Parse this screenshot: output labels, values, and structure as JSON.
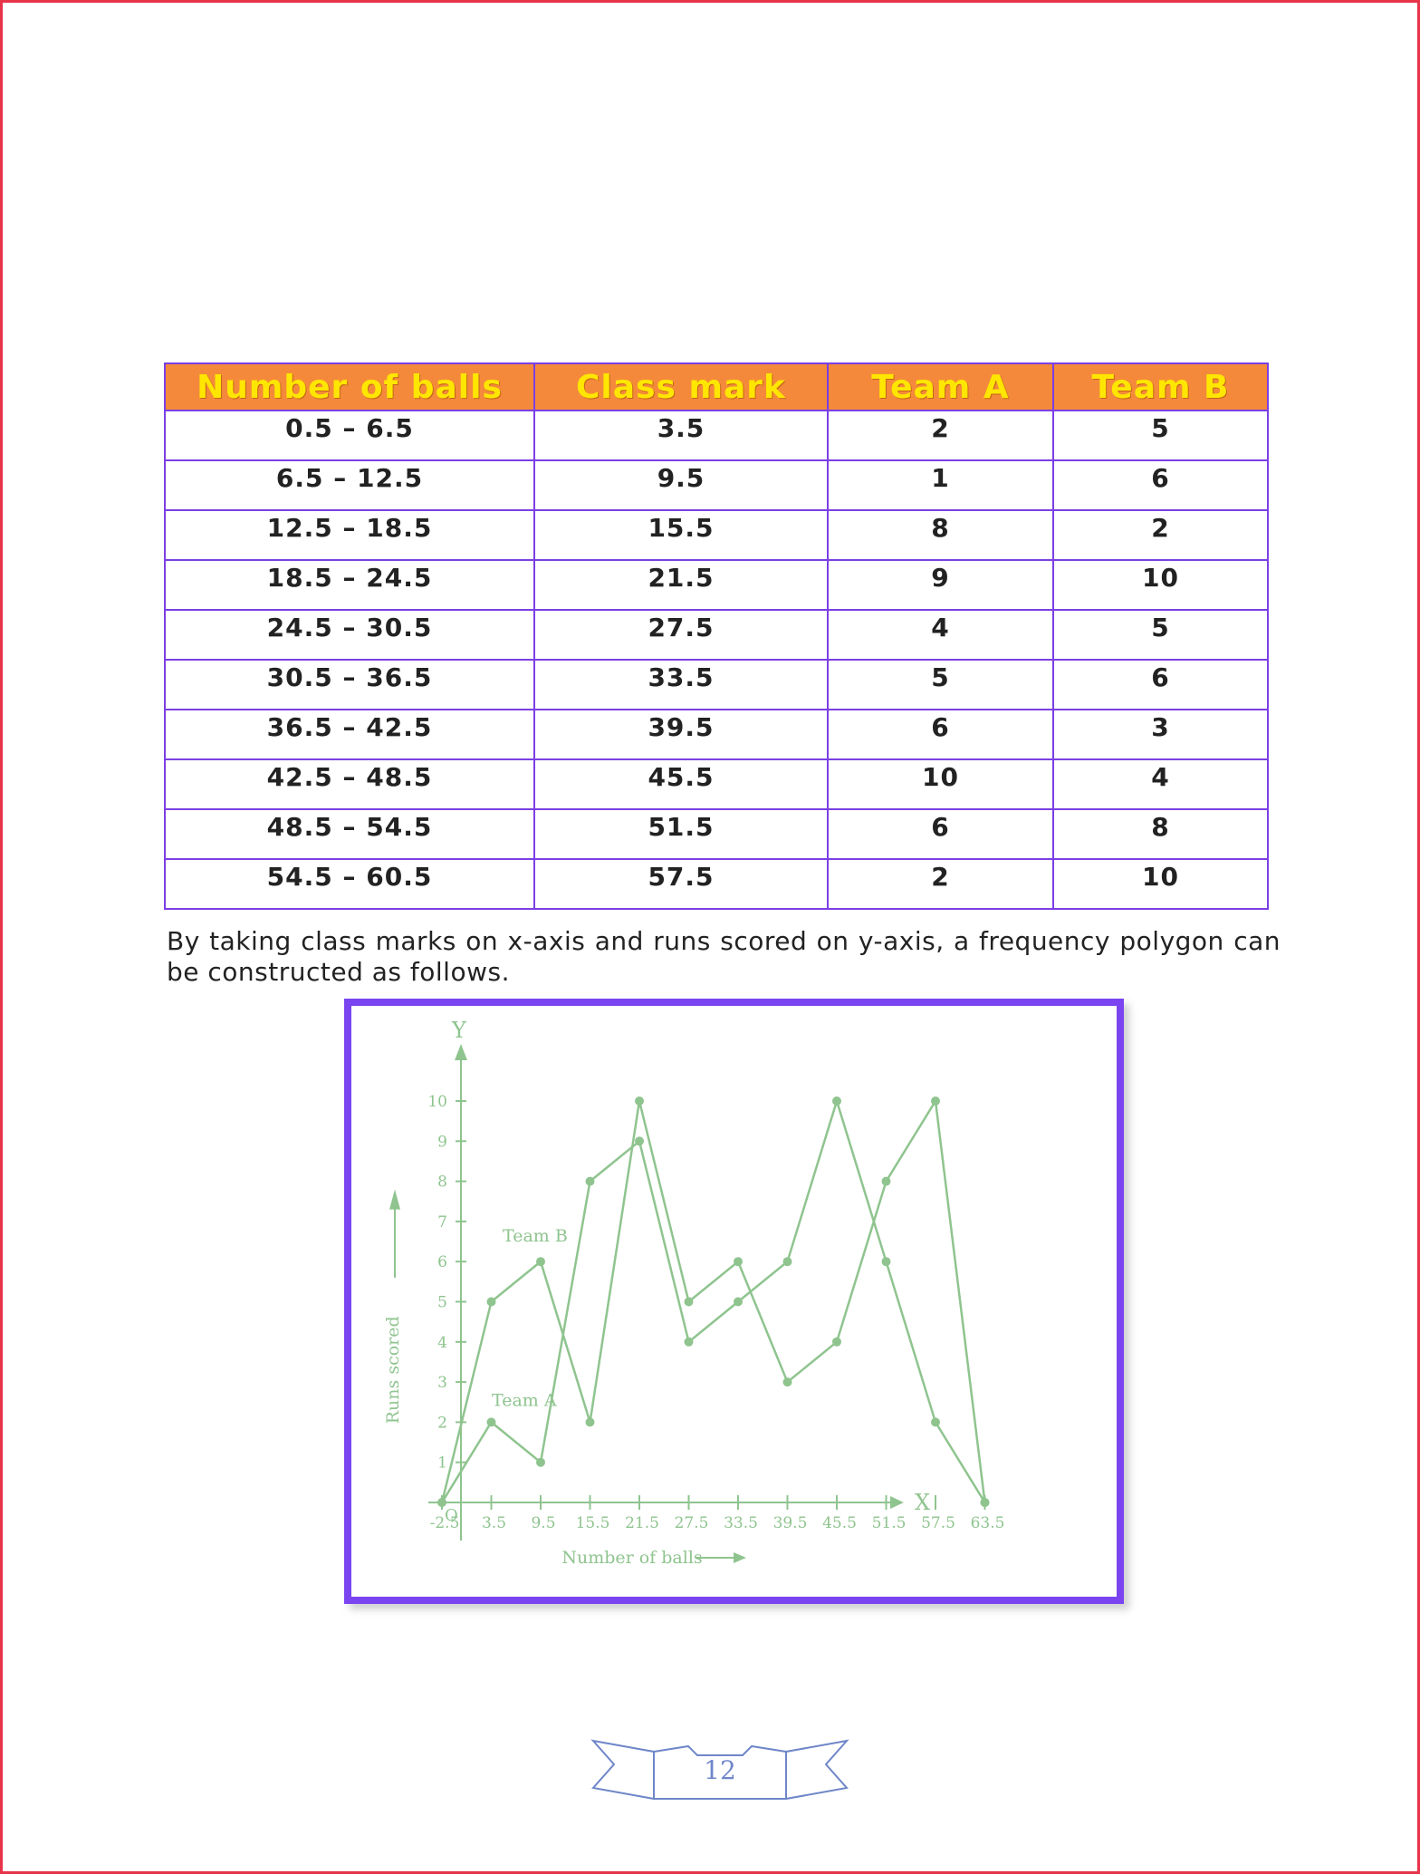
{
  "table": {
    "headers": [
      "Number of balls",
      "Class mark",
      "Team A",
      "Team B"
    ],
    "rows": [
      [
        "0.5 – 6.5",
        "3.5",
        "2",
        "5"
      ],
      [
        "6.5 – 12.5",
        "9.5",
        "1",
        "6"
      ],
      [
        "12.5 – 18.5",
        "15.5",
        "8",
        "2"
      ],
      [
        "18.5 – 24.5",
        "21.5",
        "9",
        "10"
      ],
      [
        "24.5 – 30.5",
        "27.5",
        "4",
        "5"
      ],
      [
        "30.5 – 36.5",
        "33.5",
        "5",
        "6"
      ],
      [
        "36.5 – 42.5",
        "39.5",
        "6",
        "3"
      ],
      [
        "42.5 – 48.5",
        "45.5",
        "10",
        "4"
      ],
      [
        "48.5 – 54.5",
        "51.5",
        "6",
        "8"
      ],
      [
        "54.5 – 60.5",
        "57.5",
        "2",
        "10"
      ]
    ]
  },
  "caption": "By taking class marks on x-axis and runs scored on y-axis, a frequency polygon can  be constructed as follows.",
  "chart_data": {
    "type": "line",
    "x": [
      -2.5,
      3.5,
      9.5,
      15.5,
      21.5,
      27.5,
      33.5,
      39.5,
      45.5,
      51.5,
      57.5,
      63.5
    ],
    "x_tick_labels": [
      "-2.5",
      "3.5",
      "9.5",
      "15.5",
      "21.5",
      "27.5",
      "33.5",
      "39.5",
      "45.5",
      "51.5",
      "57.5",
      "63.5"
    ],
    "origin_label": "O",
    "y_ticks": [
      1,
      2,
      3,
      4,
      5,
      6,
      7,
      8,
      9,
      10
    ],
    "ylim": [
      0,
      10
    ],
    "x_axis_name": "X",
    "y_axis_name": "Y",
    "xlabel": "Number of balls",
    "ylabel": "Runs scored",
    "series": [
      {
        "name": "Team A",
        "values": [
          0,
          2,
          1,
          8,
          9,
          4,
          5,
          6,
          10,
          6,
          2,
          0
        ]
      },
      {
        "name": "Team B",
        "values": [
          0,
          5,
          6,
          2,
          10,
          5,
          6,
          3,
          4,
          8,
          10,
          0
        ]
      }
    ],
    "color": "#8fc48f",
    "grid": false
  },
  "footer": {
    "page_number": "12"
  }
}
